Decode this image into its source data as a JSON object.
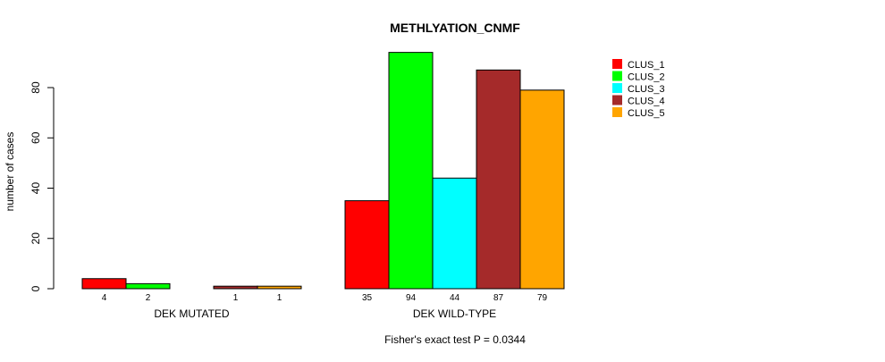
{
  "chart_data": {
    "type": "bar",
    "title": "METHLYATION_CNMF",
    "ylabel": "number of cases",
    "xlabel": "",
    "footer": "Fisher's exact test P = 0.0344",
    "ylim": [
      0,
      95
    ],
    "yticks": [
      0,
      20,
      40,
      60,
      80
    ],
    "groups": [
      "DEK MUTATED",
      "DEK WILD-TYPE"
    ],
    "series": [
      {
        "name": "CLUS_1",
        "color": "#FF0000",
        "values": [
          4,
          35
        ]
      },
      {
        "name": "CLUS_2",
        "color": "#00FF00",
        "values": [
          2,
          94
        ]
      },
      {
        "name": "CLUS_3",
        "color": "#00FFFF",
        "values": [
          0,
          44
        ]
      },
      {
        "name": "CLUS_4",
        "color": "#A52A2A",
        "values": [
          1,
          87
        ]
      },
      {
        "name": "CLUS_5",
        "color": "#FFA500",
        "values": [
          1,
          79
        ]
      }
    ],
    "legend_position": "top-right",
    "grid": false
  }
}
